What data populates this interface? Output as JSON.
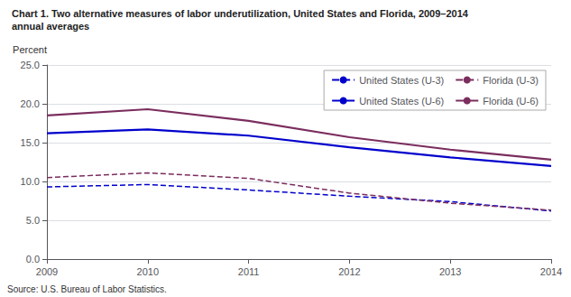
{
  "chart_data": {
    "type": "line",
    "title": "Chart 1. Two alternative measures of labor underutilization, United States and Florida, 2009–2014",
    "subtitle": "annual averages",
    "y_label": "Percent",
    "source": "Source: U.S. Bureau of Labor Statistics.",
    "x": [
      2009,
      2010,
      2011,
      2012,
      2013,
      2014
    ],
    "xlim": [
      2009,
      2014
    ],
    "xticks": [
      2009,
      2010,
      2011,
      2012,
      2013,
      2014
    ],
    "ylim": [
      0.0,
      25.0
    ],
    "yticks": [
      {
        "value": 0.0,
        "label": "0.0"
      },
      {
        "value": 5.0,
        "label": "5.0"
      },
      {
        "value": 10.0,
        "label": "10.0"
      },
      {
        "value": 15.0,
        "label": "15.0"
      },
      {
        "value": 20.0,
        "label": "20.0"
      },
      {
        "value": 25.0,
        "label": "25.0"
      }
    ],
    "grid": true,
    "legend": "upper right",
    "series": [
      {
        "name": "United States (U-3)",
        "color": "#0000CC",
        "line_style": "dashed",
        "values": [
          9.3,
          9.6,
          8.9,
          8.1,
          7.4,
          6.2
        ]
      },
      {
        "name": "Florida (U-3)",
        "color": "#7B2D5E",
        "line_style": "dashed",
        "values": [
          10.5,
          11.1,
          10.4,
          8.5,
          7.2,
          6.3
        ]
      },
      {
        "name": "United States (U-6)",
        "color": "#0000CC",
        "line_style": "solid",
        "values": [
          16.2,
          16.7,
          15.9,
          14.4,
          13.1,
          12.0
        ]
      },
      {
        "name": "Florida (U-6)",
        "color": "#7B2D5E",
        "line_style": "solid",
        "values": [
          18.5,
          19.3,
          17.8,
          15.7,
          14.1,
          12.8
        ]
      }
    ]
  }
}
